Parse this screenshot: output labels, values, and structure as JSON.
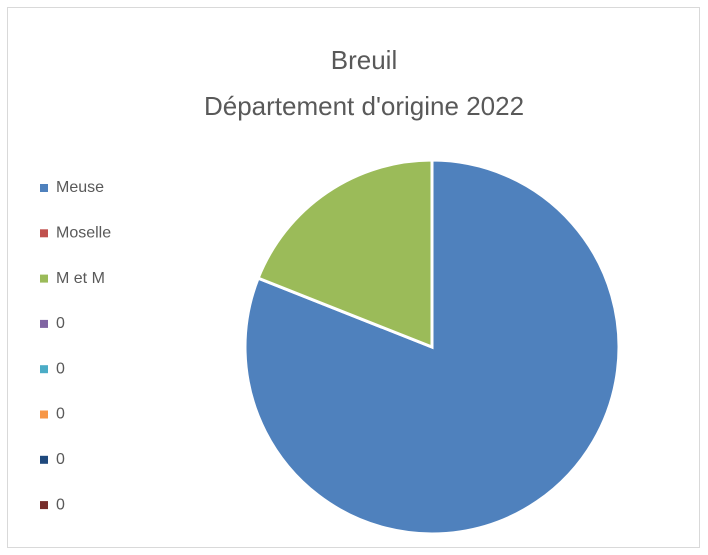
{
  "chart_data": {
    "type": "pie",
    "title_lines": [
      "Breuil",
      "Département d'origine 2022"
    ],
    "categories": [
      "Meuse",
      "Moselle",
      "M et M",
      "0",
      "0",
      "0",
      "0",
      "0"
    ],
    "values": [
      81,
      0,
      19,
      0,
      0,
      0,
      0,
      0
    ],
    "colors": [
      "#4f81bd",
      "#c0504d",
      "#9bbb59",
      "#8064a2",
      "#4bacc6",
      "#f79646",
      "#1f497d",
      "#772c2a"
    ],
    "legend": "left"
  }
}
